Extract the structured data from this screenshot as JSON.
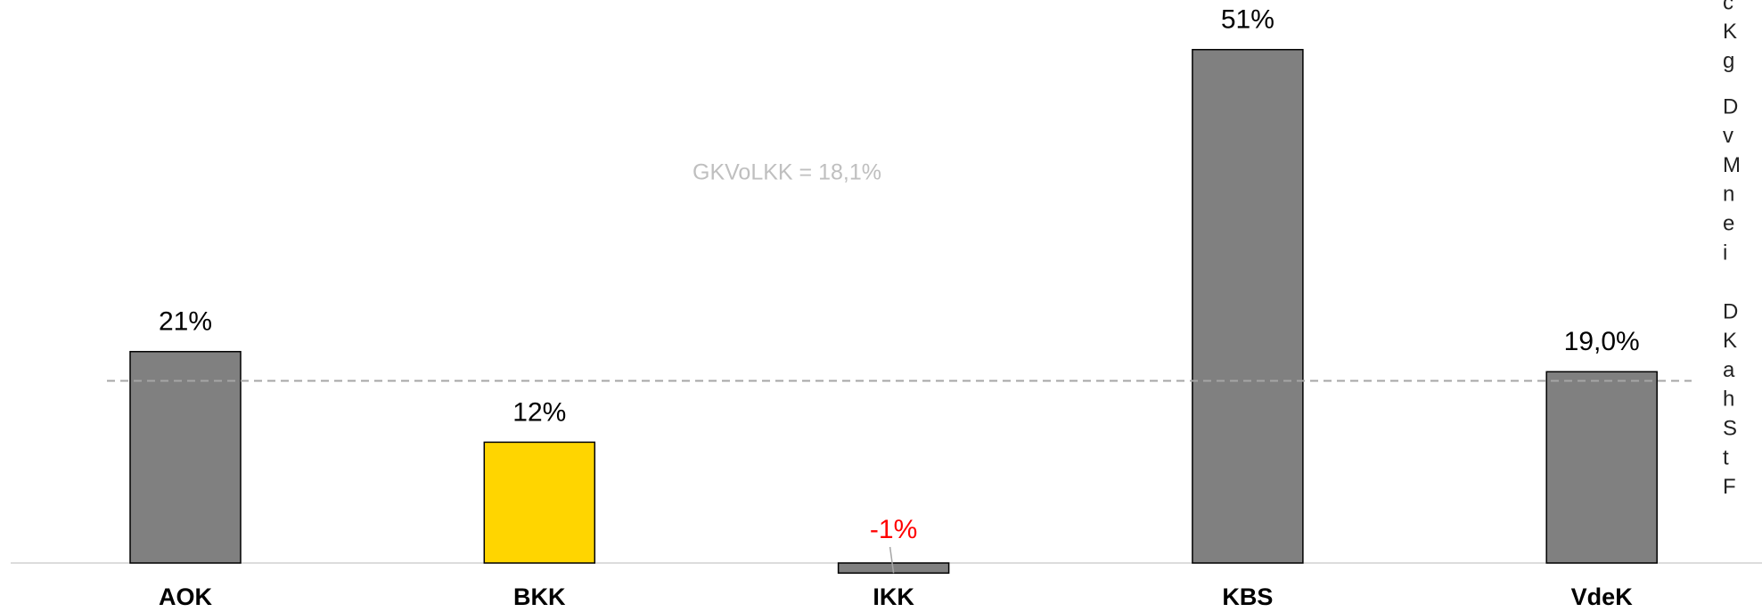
{
  "chart_data": {
    "type": "bar",
    "categories": [
      "AOK",
      "BKK",
      "IKK",
      "KBS",
      "VdeK"
    ],
    "values": [
      21,
      12,
      -1,
      51,
      19.0
    ],
    "value_labels": [
      "21%",
      "12%",
      "-1%",
      "51%",
      "19,0%"
    ],
    "colors": [
      "#808080",
      "#ffd500",
      "#808080",
      "#808080",
      "#808080"
    ],
    "label_colors": [
      "#000000",
      "#000000",
      "#ff0000",
      "#000000",
      "#000000"
    ],
    "reference": {
      "value": 18.1,
      "label": "GKVoLKK = 18,1%",
      "color": "#a6a6a6"
    },
    "side_text": [
      [
        "c",
        "K",
        "g"
      ],
      [
        "D",
        "v",
        "M",
        "n",
        "e",
        "i"
      ],
      [
        "D",
        "K",
        "a",
        "h",
        "S",
        "t",
        "F"
      ]
    ]
  }
}
